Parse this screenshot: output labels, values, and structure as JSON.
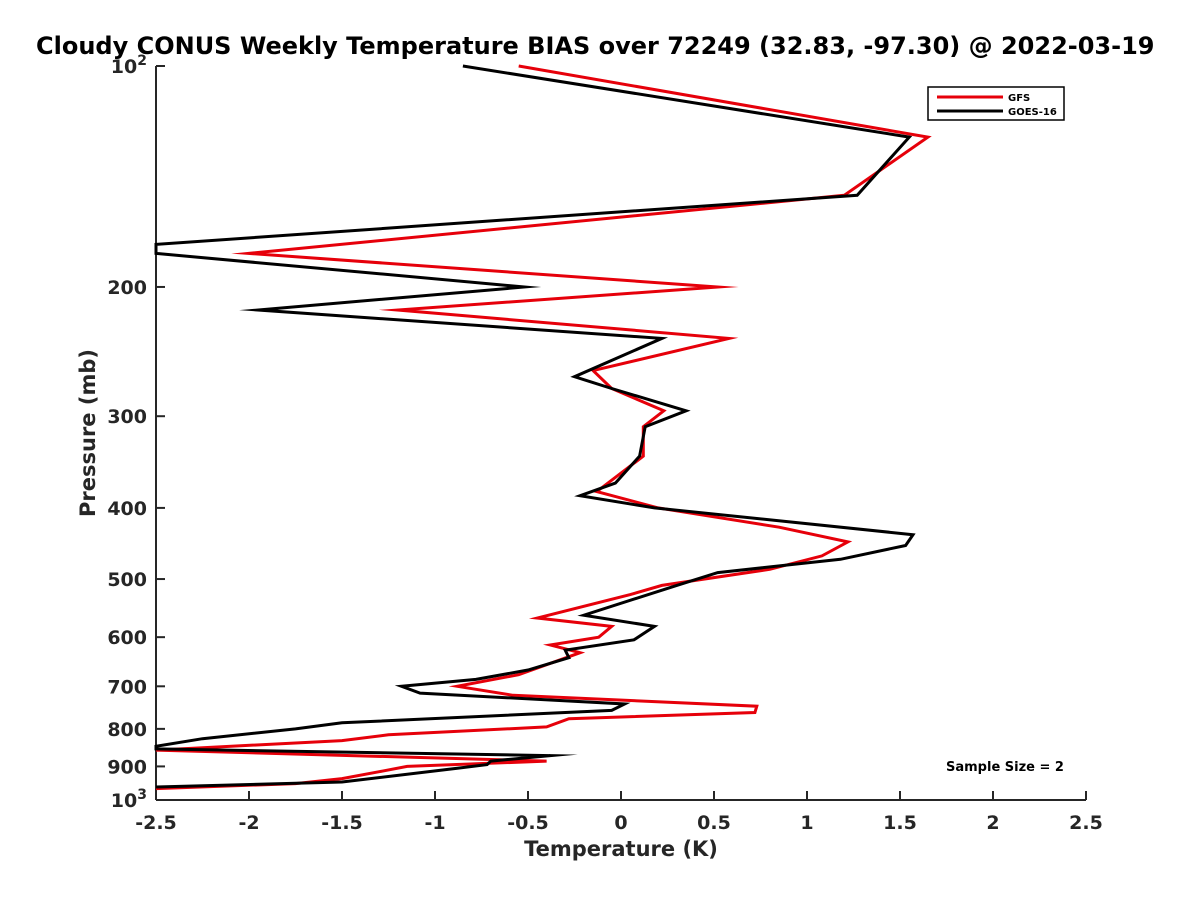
{
  "chart_data": {
    "type": "line",
    "title": "Cloudy CONUS Weekly Temperature BIAS over 72249 (32.83, -97.30) @ 2022-03-19",
    "xlabel": "Temperature (K)",
    "ylabel": "Pressure (mb)",
    "xlim": [
      -2.5,
      2.5
    ],
    "ylim": [
      100,
      1000
    ],
    "y_scale": "log",
    "y_reversed": true,
    "grid": false,
    "legend_placement": "top-right",
    "x_ticks": [
      "-2.5",
      "-2",
      "-1.5",
      "-1",
      "-0.5",
      "0",
      "0.5",
      "1",
      "1.5",
      "2",
      "2.5"
    ],
    "y_ticks": [
      {
        "value": 100,
        "base": "10",
        "exp": "2"
      },
      {
        "value": 200,
        "label": "200"
      },
      {
        "value": 300,
        "label": "300"
      },
      {
        "value": 400,
        "label": "400"
      },
      {
        "value": 500,
        "label": "500"
      },
      {
        "value": 600,
        "label": "600"
      },
      {
        "value": 700,
        "label": "700"
      },
      {
        "value": 800,
        "label": "800"
      },
      {
        "value": 900,
        "label": "900"
      },
      {
        "value": 1000,
        "base": "10",
        "exp": "3"
      }
    ],
    "annotation": "Sample Size = 2",
    "series": [
      {
        "name": "GFS",
        "color": "#e6000a",
        "points": [
          [
            -0.55,
            100
          ],
          [
            1.65,
            125
          ],
          [
            1.2,
            150
          ],
          [
            -2.0,
            180
          ],
          [
            0.52,
            200
          ],
          [
            -1.2,
            215
          ],
          [
            0.58,
            235
          ],
          [
            -0.15,
            260
          ],
          [
            -0.05,
            275
          ],
          [
            0.23,
            295
          ],
          [
            0.12,
            310
          ],
          [
            0.12,
            340
          ],
          [
            -0.13,
            380
          ],
          [
            0.2,
            400
          ],
          [
            0.85,
            425
          ],
          [
            1.22,
            445
          ],
          [
            1.08,
            465
          ],
          [
            0.8,
            485
          ],
          [
            0.22,
            510
          ],
          [
            0.05,
            525
          ],
          [
            -0.45,
            565
          ],
          [
            -0.05,
            580
          ],
          [
            -0.12,
            600
          ],
          [
            -0.38,
            615
          ],
          [
            -0.22,
            630
          ],
          [
            -0.55,
            675
          ],
          [
            -0.88,
            700
          ],
          [
            -0.58,
            720
          ],
          [
            0.73,
            745
          ],
          [
            0.72,
            760
          ],
          [
            -0.28,
            775
          ],
          [
            -0.4,
            795
          ],
          [
            -1.25,
            815
          ],
          [
            -1.5,
            830
          ],
          [
            -2.3,
            850
          ],
          [
            -2.5,
            855
          ],
          [
            -0.4,
            885
          ],
          [
            -1.15,
            900
          ],
          [
            -1.3,
            915
          ],
          [
            -1.5,
            935
          ],
          [
            -1.75,
            950
          ],
          [
            -2.5,
            965
          ]
        ]
      },
      {
        "name": "GOES-16",
        "color": "#000000",
        "points": [
          [
            -0.85,
            100
          ],
          [
            1.55,
            125
          ],
          [
            1.27,
            150
          ],
          [
            -2.5,
            175
          ],
          [
            -2.5,
            180
          ],
          [
            -0.52,
            200
          ],
          [
            -1.95,
            215
          ],
          [
            0.22,
            235
          ],
          [
            -0.25,
            265
          ],
          [
            -0.05,
            275
          ],
          [
            0.35,
            295
          ],
          [
            0.13,
            310
          ],
          [
            0.1,
            340
          ],
          [
            -0.03,
            370
          ],
          [
            -0.22,
            385
          ],
          [
            0.18,
            400
          ],
          [
            1.57,
            435
          ],
          [
            1.53,
            450
          ],
          [
            1.18,
            470
          ],
          [
            0.52,
            490
          ],
          [
            0.3,
            510
          ],
          [
            -0.2,
            560
          ],
          [
            0.18,
            580
          ],
          [
            0.07,
            605
          ],
          [
            -0.3,
            625
          ],
          [
            -0.28,
            640
          ],
          [
            -0.5,
            665
          ],
          [
            -0.78,
            685
          ],
          [
            -1.18,
            700
          ],
          [
            -1.08,
            715
          ],
          [
            0.02,
            740
          ],
          [
            -0.05,
            755
          ],
          [
            -1.5,
            785
          ],
          [
            -1.75,
            800
          ],
          [
            -2.25,
            825
          ],
          [
            -2.5,
            845
          ],
          [
            -2.5,
            852
          ],
          [
            -0.38,
            870
          ],
          [
            -0.7,
            885
          ],
          [
            -0.72,
            895
          ],
          [
            -0.88,
            905
          ],
          [
            -1.5,
            945
          ],
          [
            -2.5,
            960
          ]
        ]
      }
    ]
  }
}
